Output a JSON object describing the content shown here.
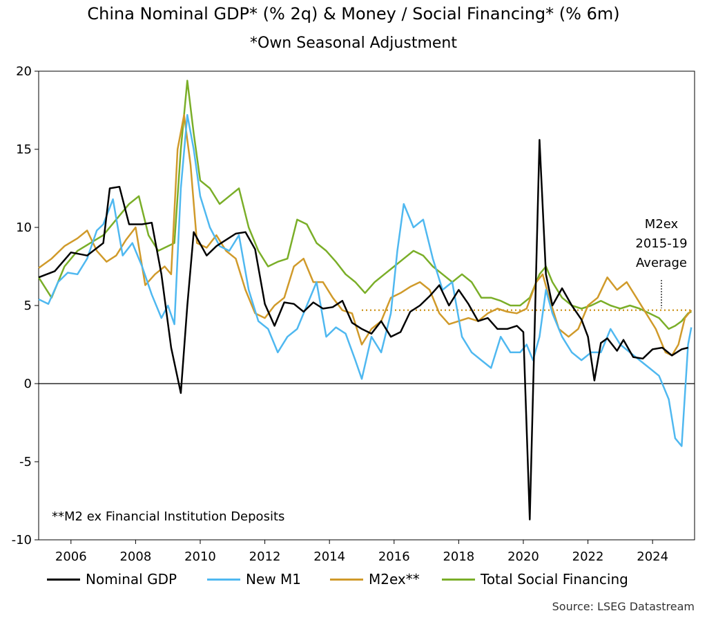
{
  "chart_data": {
    "type": "line",
    "title": "China Nominal GDP* (% 2q) & Money / Social Financing* (% 6m)",
    "subtitle": "*Own Seasonal Adjustment",
    "ylim": [
      -10,
      20
    ],
    "yticks": [
      -10,
      -5,
      0,
      5,
      10,
      15,
      20
    ],
    "xlim": [
      2005.0,
      2025.3
    ],
    "xticks": [
      2006,
      2008,
      2010,
      2012,
      2014,
      2016,
      2018,
      2020,
      2022,
      2024
    ],
    "grid": false,
    "legend_position": "bottom",
    "annotations": [
      {
        "text_lines": [
          "M2ex",
          "2015-19",
          "Average"
        ],
        "type": "label"
      },
      {
        "text": "**M2 ex Financial Institution Deposits",
        "type": "footnote"
      }
    ],
    "reference_lines": [
      {
        "name": "M2ex 2015-19 Average",
        "y": 4.7,
        "x_from": 2015.0,
        "x_to": 2025.2,
        "style": "dotted",
        "color": "#D09A2A"
      },
      {
        "y": 0,
        "style": "solid",
        "color": "#000000"
      }
    ],
    "series": [
      {
        "name": "Nominal GDP",
        "color": "#000000",
        "x": [
          2005.0,
          2005.5,
          2006.0,
          2006.5,
          2007.0,
          2007.2,
          2007.5,
          2007.8,
          2008.2,
          2008.5,
          2008.8,
          2009.1,
          2009.4,
          2009.6,
          2009.8,
          2010.2,
          2010.5,
          2010.8,
          2011.1,
          2011.4,
          2011.7,
          2012.0,
          2012.3,
          2012.6,
          2012.9,
          2013.2,
          2013.5,
          2013.8,
          2014.1,
          2014.4,
          2014.7,
          2015.0,
          2015.3,
          2015.6,
          2015.9,
          2016.2,
          2016.5,
          2016.8,
          2017.1,
          2017.4,
          2017.7,
          2018.0,
          2018.3,
          2018.6,
          2018.9,
          2019.2,
          2019.5,
          2019.8,
          2020.0,
          2020.2,
          2020.5,
          2020.7,
          2020.9,
          2021.2,
          2021.5,
          2021.8,
          2022.0,
          2022.2,
          2022.4,
          2022.6,
          2022.9,
          2023.1,
          2023.4,
          2023.7,
          2024.0,
          2024.3,
          2024.6,
          2024.9,
          2025.1
        ],
        "y": [
          6.8,
          7.2,
          8.4,
          8.2,
          9.0,
          12.5,
          12.6,
          10.2,
          10.2,
          10.3,
          7.0,
          2.3,
          -0.6,
          5.0,
          9.7,
          8.2,
          8.8,
          9.2,
          9.6,
          9.7,
          8.6,
          5.1,
          3.7,
          5.2,
          5.1,
          4.6,
          5.2,
          4.8,
          4.9,
          5.3,
          3.9,
          3.5,
          3.2,
          4.0,
          3.0,
          3.3,
          4.6,
          5.0,
          5.6,
          6.3,
          5.0,
          6.0,
          5.1,
          4.0,
          4.2,
          3.5,
          3.5,
          3.7,
          3.3,
          -8.7,
          15.6,
          7.0,
          5.0,
          6.1,
          5.0,
          4.1,
          3.0,
          0.2,
          2.6,
          2.9,
          2.1,
          2.8,
          1.7,
          1.6,
          2.2,
          2.3,
          1.8,
          2.2,
          2.3
        ]
      },
      {
        "name": "New M1",
        "color": "#4FB8F0",
        "x": [
          2005.0,
          2005.3,
          2005.6,
          2005.9,
          2006.2,
          2006.5,
          2006.8,
          2007.0,
          2007.3,
          2007.6,
          2007.9,
          2008.2,
          2008.5,
          2008.8,
          2009.0,
          2009.2,
          2009.4,
          2009.6,
          2009.8,
          2010.0,
          2010.3,
          2010.6,
          2010.9,
          2011.2,
          2011.5,
          2011.8,
          2012.1,
          2012.4,
          2012.7,
          2013.0,
          2013.3,
          2013.6,
          2013.9,
          2014.2,
          2014.5,
          2014.8,
          2015.0,
          2015.3,
          2015.6,
          2015.9,
          2016.1,
          2016.3,
          2016.6,
          2016.9,
          2017.2,
          2017.5,
          2017.8,
          2018.1,
          2018.4,
          2018.7,
          2019.0,
          2019.3,
          2019.6,
          2019.9,
          2020.1,
          2020.3,
          2020.5,
          2020.7,
          2020.9,
          2021.2,
          2021.5,
          2021.8,
          2022.1,
          2022.4,
          2022.7,
          2023.0,
          2023.3,
          2023.6,
          2023.9,
          2024.2,
          2024.5,
          2024.7,
          2024.9,
          2025.1,
          2025.2
        ],
        "y": [
          5.4,
          5.1,
          6.5,
          7.1,
          7.0,
          8.0,
          9.8,
          10.2,
          11.8,
          8.2,
          9.0,
          7.5,
          5.7,
          4.2,
          5.0,
          3.8,
          12.5,
          17.2,
          15.0,
          12.0,
          10.0,
          8.8,
          8.5,
          9.5,
          6.0,
          4.0,
          3.5,
          2.0,
          3.0,
          3.5,
          5.0,
          6.5,
          3.0,
          3.6,
          3.2,
          1.5,
          0.3,
          3.0,
          2.0,
          4.5,
          8.5,
          11.5,
          10.0,
          10.5,
          8.0,
          6.0,
          6.5,
          3.0,
          2.0,
          1.5,
          1.0,
          3.0,
          2.0,
          2.0,
          2.5,
          1.5,
          3.0,
          6.0,
          4.5,
          3.0,
          2.0,
          1.5,
          2.0,
          2.0,
          3.5,
          2.5,
          2.0,
          1.5,
          1.0,
          0.5,
          -1.0,
          -3.5,
          -4.0,
          2.5,
          3.6
        ]
      },
      {
        "name": "M2ex**",
        "color": "#D09A2A",
        "x": [
          2005.0,
          2005.4,
          2005.8,
          2006.2,
          2006.5,
          2006.8,
          2007.1,
          2007.4,
          2007.7,
          2008.0,
          2008.3,
          2008.6,
          2008.9,
          2009.1,
          2009.3,
          2009.5,
          2009.7,
          2009.9,
          2010.2,
          2010.5,
          2010.8,
          2011.1,
          2011.4,
          2011.7,
          2012.0,
          2012.3,
          2012.6,
          2012.9,
          2013.2,
          2013.5,
          2013.8,
          2014.1,
          2014.4,
          2014.7,
          2015.0,
          2015.3,
          2015.6,
          2015.9,
          2016.2,
          2016.5,
          2016.8,
          2017.1,
          2017.4,
          2017.7,
          2018.0,
          2018.3,
          2018.6,
          2018.9,
          2019.2,
          2019.5,
          2019.8,
          2020.1,
          2020.4,
          2020.6,
          2020.8,
          2021.1,
          2021.4,
          2021.7,
          2022.0,
          2022.3,
          2022.6,
          2022.9,
          2023.2,
          2023.5,
          2023.8,
          2024.1,
          2024.4,
          2024.6,
          2024.8,
          2025.0,
          2025.2
        ],
        "y": [
          7.4,
          8.0,
          8.8,
          9.3,
          9.8,
          8.5,
          7.8,
          8.2,
          9.2,
          10.0,
          6.3,
          7.0,
          7.5,
          7.0,
          15.0,
          17.2,
          14.0,
          9.0,
          8.7,
          9.5,
          8.5,
          8.0,
          6.0,
          4.5,
          4.2,
          5.0,
          5.5,
          7.5,
          8.0,
          6.5,
          6.5,
          5.5,
          4.7,
          4.5,
          2.5,
          3.5,
          4.0,
          5.5,
          5.8,
          6.2,
          6.5,
          6.0,
          4.5,
          3.8,
          4.0,
          4.2,
          4.0,
          4.5,
          4.8,
          4.6,
          4.5,
          4.8,
          6.5,
          7.0,
          5.5,
          3.5,
          3.0,
          3.5,
          5.0,
          5.5,
          6.8,
          6.0,
          6.5,
          5.5,
          4.5,
          3.5,
          2.0,
          1.8,
          2.5,
          4.2,
          4.7
        ]
      },
      {
        "name": "Total Social Financing",
        "color": "#7AAE28",
        "x": [
          2005.0,
          2005.4,
          2005.8,
          2006.2,
          2006.6,
          2007.0,
          2007.4,
          2007.8,
          2008.1,
          2008.4,
          2008.7,
          2009.0,
          2009.2,
          2009.4,
          2009.6,
          2009.8,
          2010.0,
          2010.3,
          2010.6,
          2010.9,
          2011.2,
          2011.5,
          2011.8,
          2012.1,
          2012.4,
          2012.7,
          2013.0,
          2013.3,
          2013.6,
          2013.9,
          2014.2,
          2014.5,
          2014.8,
          2015.1,
          2015.4,
          2015.7,
          2016.0,
          2016.3,
          2016.6,
          2016.9,
          2017.2,
          2017.5,
          2017.8,
          2018.1,
          2018.4,
          2018.7,
          2019.0,
          2019.3,
          2019.6,
          2019.9,
          2020.2,
          2020.5,
          2020.7,
          2020.9,
          2021.2,
          2021.5,
          2021.8,
          2022.1,
          2022.4,
          2022.7,
          2023.0,
          2023.3,
          2023.6,
          2023.9,
          2024.2,
          2024.5,
          2024.7,
          2024.9,
          2025.1,
          2025.2
        ],
        "y": [
          6.8,
          5.5,
          7.5,
          8.5,
          9.0,
          9.5,
          10.5,
          11.5,
          12.0,
          9.5,
          8.5,
          8.8,
          9.0,
          15.0,
          19.4,
          16.0,
          13.0,
          12.5,
          11.5,
          12.0,
          12.5,
          10.0,
          8.5,
          7.5,
          7.8,
          8.0,
          10.5,
          10.2,
          9.0,
          8.5,
          7.8,
          7.0,
          6.5,
          5.8,
          6.5,
          7.0,
          7.5,
          8.0,
          8.5,
          8.2,
          7.5,
          7.0,
          6.5,
          7.0,
          6.5,
          5.5,
          5.5,
          5.3,
          5.0,
          5.0,
          5.5,
          7.0,
          7.5,
          6.5,
          5.5,
          5.0,
          4.8,
          5.0,
          5.3,
          5.0,
          4.8,
          5.0,
          4.8,
          4.5,
          4.2,
          3.5,
          3.7,
          4.0,
          4.5,
          4.6
        ]
      }
    ]
  },
  "footnote": "**M2 ex Financial Institution Deposits",
  "annotation": {
    "line1": "M2ex",
    "line2": "2015-19",
    "line3": "Average"
  },
  "source": "Source: LSEG Datastream"
}
